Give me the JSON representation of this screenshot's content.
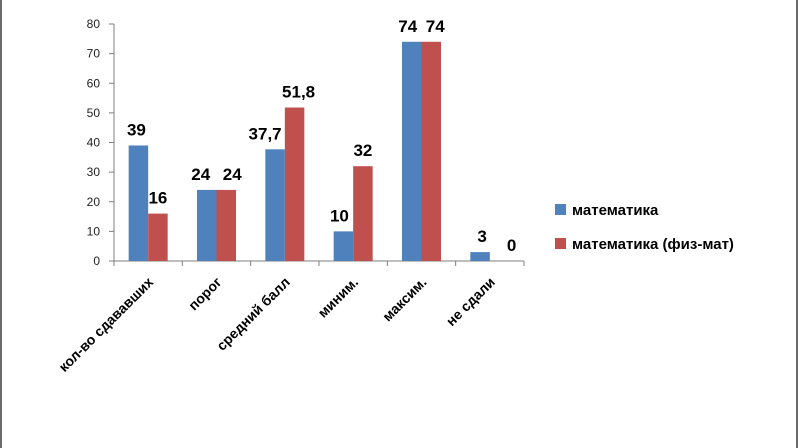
{
  "chart_data": {
    "type": "bar",
    "title": "",
    "xlabel": "",
    "ylabel": "",
    "ylim": [
      0,
      80
    ],
    "yticks": [
      0,
      10,
      20,
      30,
      40,
      50,
      60,
      70,
      80
    ],
    "grid": false,
    "legend_position": "right",
    "categories": [
      "кол-во сдававших",
      "порог",
      "средний балл",
      "миним.",
      "максим.",
      "не сдали"
    ],
    "series": [
      {
        "name": "математика",
        "color": "#4f81bd",
        "values": [
          39,
          24,
          37.7,
          10,
          74,
          3
        ],
        "labels": [
          "39",
          "24",
          "37,7",
          "10",
          "74",
          "3"
        ]
      },
      {
        "name": "математика (физ-мат)",
        "color": "#c0504d",
        "values": [
          16,
          24,
          51.8,
          32,
          74,
          0
        ],
        "labels": [
          "16",
          "24",
          "51,8",
          "32",
          "74",
          "0"
        ]
      }
    ]
  }
}
